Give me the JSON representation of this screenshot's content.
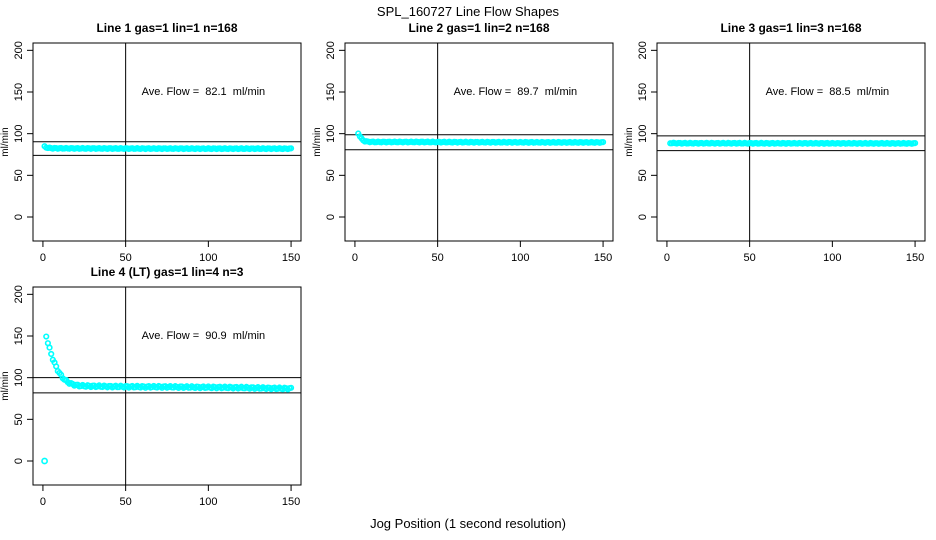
{
  "page": {
    "title": "SPL_160727  Line Flow Shapes",
    "xlabel": "Jog Position (1 second resolution)"
  },
  "chart_data": {
    "type": "scatter",
    "title": "SPL_160727  Line Flow Shapes",
    "xlabel": "Jog Position (1 second resolution)",
    "ylabel": "ml/min",
    "point_color": "#00FFFF",
    "line_color": "#000000",
    "x_ticks": [
      0,
      50,
      100,
      150
    ],
    "y_ticks": [
      0,
      50,
      100,
      150,
      200
    ],
    "xlim": [
      -6,
      156
    ],
    "ylim": [
      -28.8,
      208.8
    ],
    "vline_x": 50,
    "annotation_xy": [
      97,
      151
    ],
    "grid": false,
    "panels": [
      {
        "title": "Line 1 gas=1 lin=1 n=168",
        "n": 168,
        "ave_flow": 82.1,
        "ave_flow_label": "Ave. Flow =  82.1  ml/min",
        "hlines": [
          90.3,
          73.9
        ],
        "wiggle": 0.5,
        "points_sample": [
          [
            1,
            84.5
          ],
          [
            2,
            83.5
          ],
          [
            3,
            83.0
          ],
          [
            4,
            82.8
          ],
          [
            6,
            82.5
          ],
          [
            10,
            82.4
          ],
          [
            20,
            82.3
          ],
          [
            40,
            82.2
          ],
          [
            60,
            82.1
          ],
          [
            80,
            82.1
          ],
          [
            100,
            82.0
          ],
          [
            120,
            82.0
          ],
          [
            150,
            82.0
          ]
        ],
        "outliers": []
      },
      {
        "title": "Line 2 gas=1 lin=2 n=168",
        "n": 168,
        "ave_flow": 89.7,
        "ave_flow_label": "Ave. Flow =  89.7  ml/min",
        "hlines": [
          98.7,
          80.7
        ],
        "wiggle": 0.5,
        "points_sample": [
          [
            2,
            100.5
          ],
          [
            3,
            97.0
          ],
          [
            4,
            94.0
          ],
          [
            5,
            92.0
          ],
          [
            6,
            91.0
          ],
          [
            8,
            90.3
          ],
          [
            12,
            90.0
          ],
          [
            20,
            90.0
          ],
          [
            40,
            90.0
          ],
          [
            60,
            89.8
          ],
          [
            80,
            89.7
          ],
          [
            100,
            89.6
          ],
          [
            120,
            89.5
          ],
          [
            150,
            89.5
          ]
        ],
        "outliers": []
      },
      {
        "title": "Line 3 gas=1 lin=3 n=168",
        "n": 168,
        "ave_flow": 88.5,
        "ave_flow_label": "Ave. Flow =  88.5  ml/min",
        "hlines": [
          97.4,
          79.7
        ],
        "wiggle": 0.5,
        "points_sample": [
          [
            2,
            88.8
          ],
          [
            4,
            88.6
          ],
          [
            10,
            88.5
          ],
          [
            30,
            88.5
          ],
          [
            60,
            88.4
          ],
          [
            90,
            88.4
          ],
          [
            120,
            88.3
          ],
          [
            150,
            88.3
          ]
        ],
        "outliers": []
      },
      {
        "title": "Line 4 (LT) gas=1 lin=4 n=3",
        "n": 3,
        "ave_flow": 90.9,
        "ave_flow_label": "Ave. Flow =  90.9  ml/min",
        "hlines": [
          100.0,
          81.8
        ],
        "wiggle": 1.1,
        "points_sample": [
          [
            2,
            150
          ],
          [
            3,
            142
          ],
          [
            4,
            135
          ],
          [
            5,
            128.5
          ],
          [
            6,
            122.5
          ],
          [
            7,
            117.5
          ],
          [
            8,
            113
          ],
          [
            9,
            109
          ],
          [
            10,
            105.5
          ],
          [
            11,
            102.5
          ],
          [
            12,
            100
          ],
          [
            13,
            98
          ],
          [
            14,
            96.2
          ],
          [
            15,
            94.8
          ],
          [
            16,
            93.6
          ],
          [
            17,
            92.7
          ],
          [
            18,
            92
          ],
          [
            19,
            91.5
          ],
          [
            20,
            91
          ],
          [
            22,
            90.4
          ],
          [
            25,
            90
          ],
          [
            30,
            89.8
          ],
          [
            35,
            89.6
          ],
          [
            40,
            89.4
          ],
          [
            50,
            89.2
          ],
          [
            60,
            89
          ],
          [
            70,
            89
          ],
          [
            80,
            88.8
          ],
          [
            90,
            88.6
          ],
          [
            100,
            88.4
          ],
          [
            110,
            88.2
          ],
          [
            120,
            88
          ],
          [
            125,
            87.8
          ],
          [
            130,
            87.6
          ],
          [
            135,
            87.4
          ],
          [
            140,
            87.2
          ],
          [
            145,
            87
          ],
          [
            150,
            87
          ]
        ],
        "outliers": [
          [
            1,
            0
          ]
        ]
      }
    ]
  }
}
